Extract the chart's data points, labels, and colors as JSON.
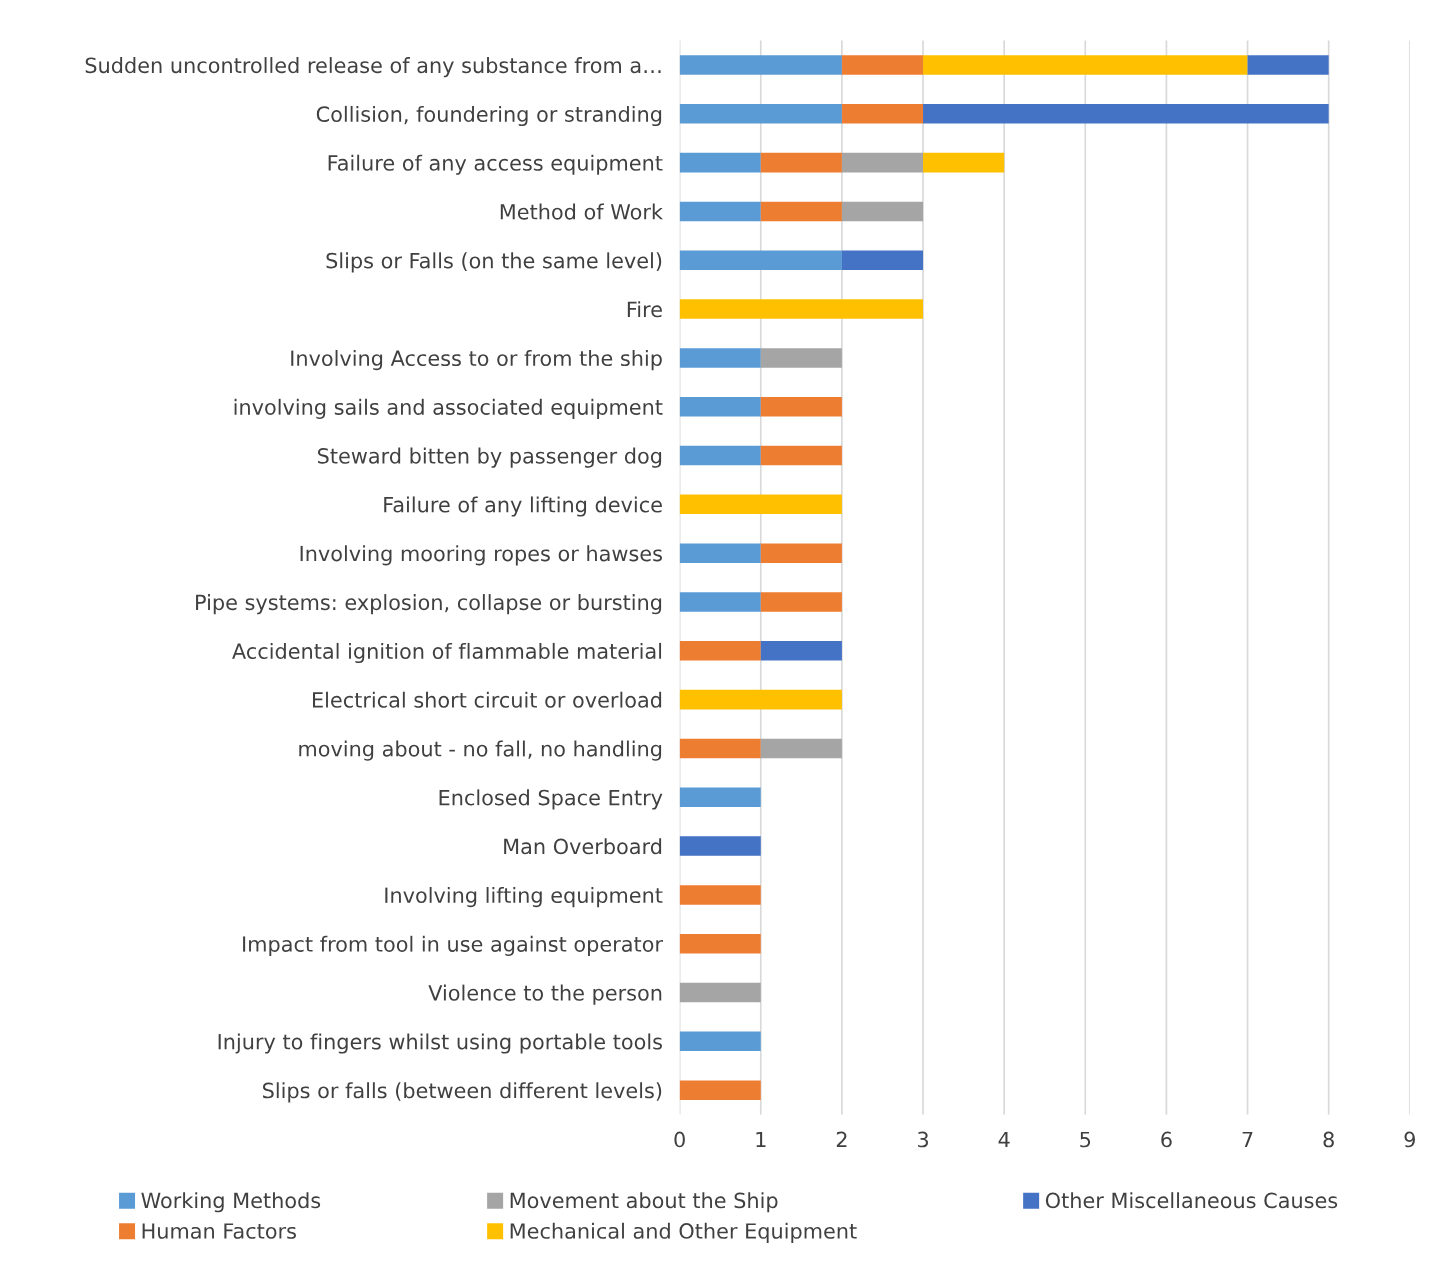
{
  "chart_data": {
    "type": "bar",
    "orientation": "horizontal",
    "stacked": true,
    "categories": [
      "Sudden uncontrolled release of any substance from a…",
      "Collision, foundering or stranding",
      "Failure of any access equipment",
      "Method of Work",
      "Slips or Falls (on the same level)",
      "Fire",
      "Involving Access to or from the ship",
      "involving sails and associated equipment",
      "Steward bitten by passenger dog",
      "Failure of any lifting device",
      "Involving mooring ropes or hawses",
      "Pipe systems: explosion, collapse or bursting",
      "Accidental ignition of flammable material",
      "Electrical short circuit or overload",
      "moving about - no fall, no handling",
      "Enclosed Space Entry",
      "Man Overboard",
      "Involving lifting equipment",
      "Impact from tool in use against operator",
      "Violence to the person",
      "Injury to fingers whilst using portable tools",
      "Slips or falls (between different levels)"
    ],
    "series": [
      {
        "name": "Working Methods",
        "color": "#5b9bd5",
        "values": [
          2,
          2,
          1,
          1,
          2,
          null,
          1,
          1,
          1,
          null,
          1,
          1,
          null,
          null,
          null,
          1,
          null,
          null,
          null,
          null,
          1,
          null
        ]
      },
      {
        "name": "Human Factors",
        "color": "#ed7d31",
        "values": [
          1,
          1,
          1,
          1,
          null,
          null,
          null,
          1,
          1,
          null,
          1,
          1,
          1,
          null,
          1,
          null,
          null,
          1,
          1,
          null,
          null,
          1
        ]
      },
      {
        "name": "Movement about the Ship",
        "color": "#a5a5a5",
        "values": [
          null,
          null,
          1,
          1,
          null,
          null,
          1,
          null,
          null,
          null,
          null,
          null,
          null,
          null,
          1,
          null,
          null,
          null,
          null,
          1,
          null,
          null
        ]
      },
      {
        "name": "Mechanical and Other Equipment",
        "color": "#ffc000",
        "values": [
          4,
          null,
          1,
          null,
          null,
          3,
          null,
          null,
          null,
          2,
          null,
          null,
          null,
          2,
          null,
          null,
          null,
          null,
          null,
          null,
          null,
          null
        ]
      },
      {
        "name": "Other Miscellaneous Causes",
        "color": "#4472c4",
        "values": [
          1,
          5,
          null,
          null,
          1,
          null,
          null,
          null,
          null,
          null,
          null,
          null,
          1,
          null,
          null,
          null,
          1,
          null,
          null,
          null,
          null,
          null
        ]
      }
    ],
    "xlim": [
      0,
      9
    ],
    "xticks": [
      0,
      1,
      2,
      3,
      4,
      5,
      6,
      7,
      8,
      9
    ],
    "grid": "x",
    "legend": "bottom"
  }
}
